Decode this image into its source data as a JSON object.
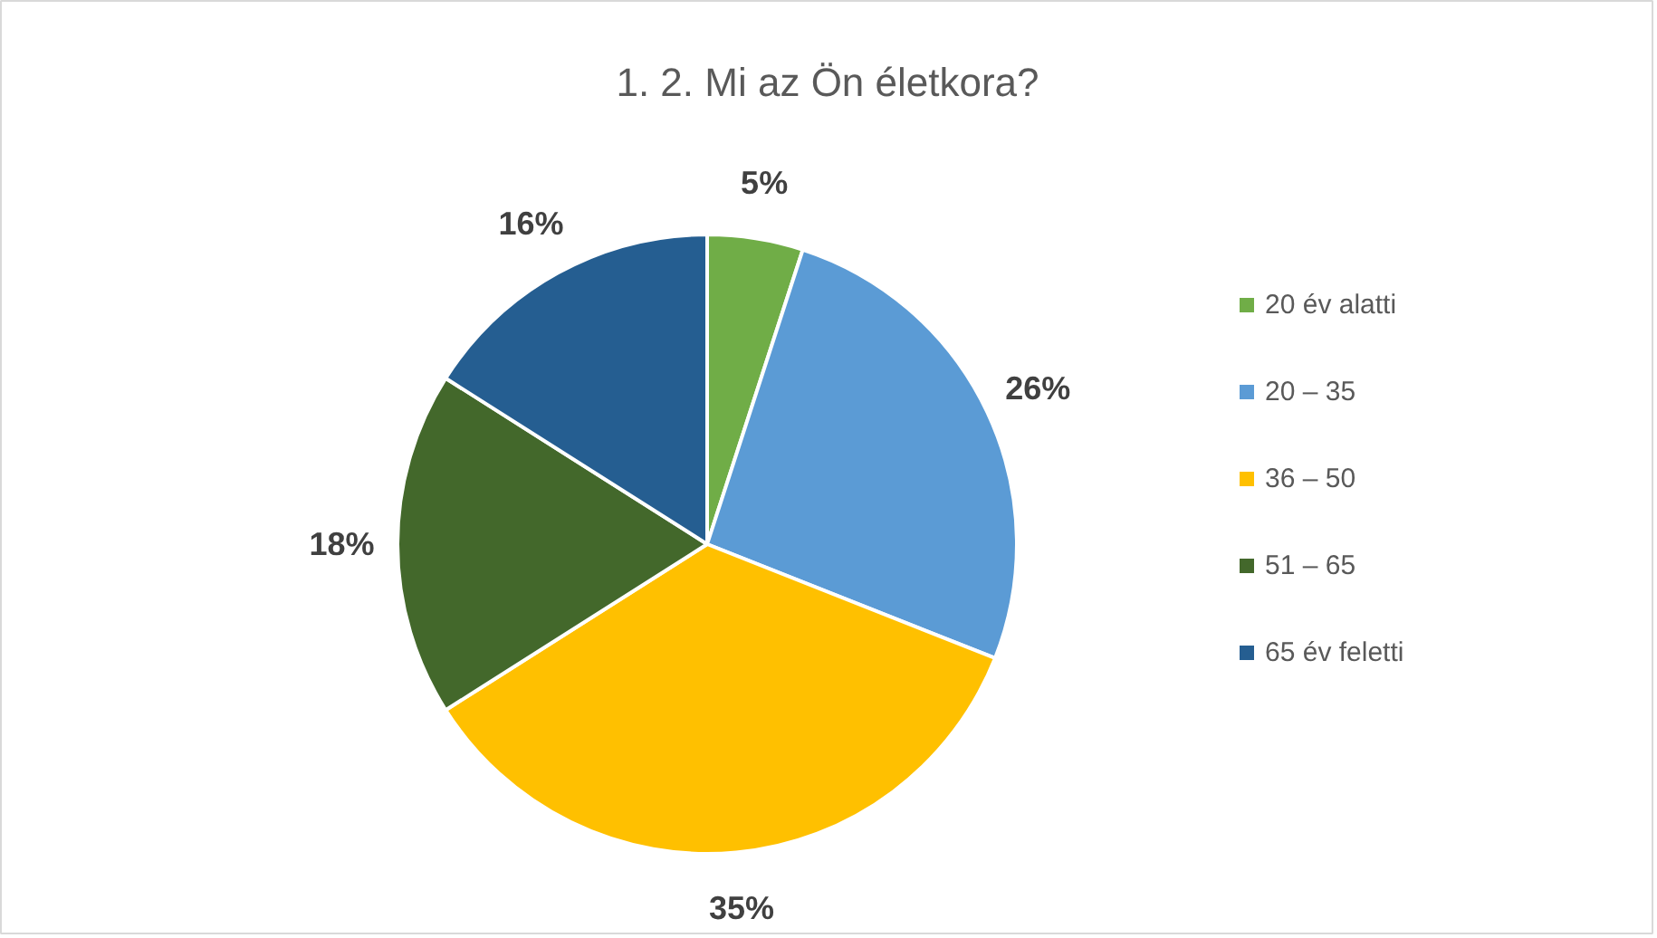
{
  "chart_data": {
    "type": "pie",
    "title": "1. 2. Mi az Ön életkora?",
    "categories": [
      "20 év alatti",
      "20 – 35",
      "36 – 50",
      "51 – 65",
      "65 év feletti"
    ],
    "values": [
      5,
      26,
      35,
      18,
      16
    ],
    "colors": [
      "#70ad47",
      "#5b9bd5",
      "#ffc000",
      "#43682b",
      "#255e91"
    ],
    "value_labels": [
      "5%",
      "26%",
      "35%",
      "18%",
      "16%"
    ],
    "legend": "right"
  }
}
